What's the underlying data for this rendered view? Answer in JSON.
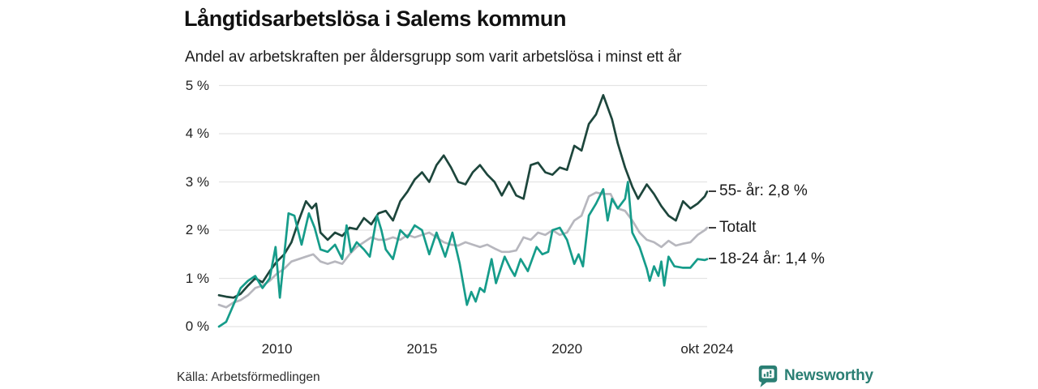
{
  "header": {
    "title": "Långtidsarbetslösa i Salems kommun",
    "subtitle": "Andel av arbetskraften per åldersgrupp som varit arbetslösa i minst ett år"
  },
  "footer": {
    "source": "Källa: Arbetsförmedlingen",
    "brand": "Newsworthy"
  },
  "colors": {
    "series_55": "#1d463c",
    "series_total": "#b7b7be",
    "series_1824": "#169c8a",
    "grid": "#e4e4e4",
    "text": "#1a1a1a",
    "brand": "#2b7f74"
  },
  "chart_data": {
    "type": "line",
    "title": "Långtidsarbetslösa i Salems kommun",
    "subtitle": "Andel av arbetskraften per åldersgrupp som varit arbetslösa i minst ett år",
    "xlabel": "",
    "ylabel": "",
    "unit": "%",
    "grid": "horizontal",
    "legend_position": "end-of-line-right",
    "x_axis": {
      "range": [
        2008,
        2024.83
      ],
      "ticks": [
        {
          "v": 2010,
          "label": "2010"
        },
        {
          "v": 2015,
          "label": "2015"
        },
        {
          "v": 2020,
          "label": "2020"
        },
        {
          "v": 2024.83,
          "label": "okt 2024"
        }
      ]
    },
    "y_axis": {
      "range": [
        0,
        5
      ],
      "ticks": [
        {
          "v": 0,
          "label": "0 %"
        },
        {
          "v": 1,
          "label": "1 %"
        },
        {
          "v": 2,
          "label": "2 %"
        },
        {
          "v": 3,
          "label": "3 %"
        },
        {
          "v": 4,
          "label": "4 %"
        },
        {
          "v": 5,
          "label": "5 %"
        }
      ]
    },
    "series": [
      {
        "key": "totalt",
        "name": "Totalt",
        "end_label": "Totalt",
        "end_value": null,
        "color": "#b7b7be",
        "points": [
          [
            2008,
            0.45
          ],
          [
            2008.25,
            0.4
          ],
          [
            2008.5,
            0.5
          ],
          [
            2008.75,
            0.55
          ],
          [
            2009,
            0.65
          ],
          [
            2009.25,
            0.8
          ],
          [
            2009.5,
            0.85
          ],
          [
            2009.75,
            0.95
          ],
          [
            2010,
            1.1
          ],
          [
            2010.25,
            1.2
          ],
          [
            2010.5,
            1.35
          ],
          [
            2010.75,
            1.4
          ],
          [
            2011,
            1.45
          ],
          [
            2011.25,
            1.5
          ],
          [
            2011.5,
            1.35
          ],
          [
            2011.75,
            1.3
          ],
          [
            2012,
            1.35
          ],
          [
            2012.25,
            1.3
          ],
          [
            2012.5,
            1.5
          ],
          [
            2012.75,
            1.65
          ],
          [
            2013,
            1.75
          ],
          [
            2013.25,
            1.85
          ],
          [
            2013.5,
            1.8
          ],
          [
            2013.75,
            1.8
          ],
          [
            2014,
            1.85
          ],
          [
            2014.25,
            1.8
          ],
          [
            2014.5,
            1.9
          ],
          [
            2014.75,
            1.85
          ],
          [
            2015,
            1.9
          ],
          [
            2015.25,
            1.95
          ],
          [
            2015.5,
            1.85
          ],
          [
            2015.75,
            1.75
          ],
          [
            2016,
            1.7
          ],
          [
            2016.25,
            1.68
          ],
          [
            2016.5,
            1.75
          ],
          [
            2016.75,
            1.7
          ],
          [
            2017,
            1.65
          ],
          [
            2017.25,
            1.7
          ],
          [
            2017.5,
            1.62
          ],
          [
            2017.75,
            1.55
          ],
          [
            2018,
            1.55
          ],
          [
            2018.25,
            1.58
          ],
          [
            2018.5,
            1.85
          ],
          [
            2018.75,
            1.8
          ],
          [
            2019,
            1.95
          ],
          [
            2019.25,
            1.9
          ],
          [
            2019.5,
            2
          ],
          [
            2019.75,
            1.9
          ],
          [
            2020,
            1.95
          ],
          [
            2020.25,
            2.2
          ],
          [
            2020.5,
            2.3
          ],
          [
            2020.75,
            2.7
          ],
          [
            2021,
            2.78
          ],
          [
            2021.25,
            2.75
          ],
          [
            2021.5,
            2.75
          ],
          [
            2021.75,
            2.45
          ],
          [
            2022,
            2.4
          ],
          [
            2022.25,
            2.2
          ],
          [
            2022.5,
            1.95
          ],
          [
            2022.75,
            1.8
          ],
          [
            2023,
            1.75
          ],
          [
            2023.25,
            1.65
          ],
          [
            2023.5,
            1.78
          ],
          [
            2023.75,
            1.68
          ],
          [
            2024,
            1.72
          ],
          [
            2024.25,
            1.75
          ],
          [
            2024.5,
            1.9
          ],
          [
            2024.75,
            2
          ],
          [
            2024.83,
            2.05
          ]
        ]
      },
      {
        "key": "55-ar",
        "name": "55- år",
        "end_label": "55- år: 2,8 %",
        "end_value": "2,8 %",
        "color": "#1d463c",
        "points": [
          [
            2008,
            0.65
          ],
          [
            2008.25,
            0.62
          ],
          [
            2008.5,
            0.6
          ],
          [
            2008.75,
            0.68
          ],
          [
            2009,
            0.85
          ],
          [
            2009.25,
            1
          ],
          [
            2009.5,
            0.92
          ],
          [
            2009.75,
            1.15
          ],
          [
            2010,
            1.35
          ],
          [
            2010.25,
            1.5
          ],
          [
            2010.5,
            1.75
          ],
          [
            2010.75,
            2.2
          ],
          [
            2011,
            2.6
          ],
          [
            2011.2,
            2.45
          ],
          [
            2011.35,
            2.55
          ],
          [
            2011.5,
            1.95
          ],
          [
            2011.75,
            1.8
          ],
          [
            2012,
            1.95
          ],
          [
            2012.25,
            1.88
          ],
          [
            2012.5,
            2.05
          ],
          [
            2012.75,
            2.02
          ],
          [
            2013,
            2.25
          ],
          [
            2013.25,
            2.12
          ],
          [
            2013.5,
            2.35
          ],
          [
            2013.75,
            2.4
          ],
          [
            2014,
            2.2
          ],
          [
            2014.25,
            2.6
          ],
          [
            2014.5,
            2.8
          ],
          [
            2014.75,
            3.05
          ],
          [
            2015,
            3.2
          ],
          [
            2015.25,
            3
          ],
          [
            2015.5,
            3.35
          ],
          [
            2015.75,
            3.55
          ],
          [
            2016,
            3.3
          ],
          [
            2016.25,
            3
          ],
          [
            2016.5,
            2.95
          ],
          [
            2016.75,
            3.2
          ],
          [
            2017,
            3.35
          ],
          [
            2017.25,
            3.15
          ],
          [
            2017.5,
            3
          ],
          [
            2017.75,
            2.72
          ],
          [
            2018,
            3
          ],
          [
            2018.25,
            2.72
          ],
          [
            2018.5,
            2.65
          ],
          [
            2018.75,
            3.35
          ],
          [
            2019,
            3.4
          ],
          [
            2019.25,
            3.2
          ],
          [
            2019.5,
            3.15
          ],
          [
            2019.75,
            3.3
          ],
          [
            2020,
            3.25
          ],
          [
            2020.25,
            3.75
          ],
          [
            2020.5,
            3.65
          ],
          [
            2020.75,
            4.2
          ],
          [
            2021,
            4.4
          ],
          [
            2021.25,
            4.8
          ],
          [
            2021.4,
            4.55
          ],
          [
            2021.55,
            4.3
          ],
          [
            2021.75,
            3.8
          ],
          [
            2022,
            3.3
          ],
          [
            2022.25,
            2.9
          ],
          [
            2022.45,
            2.65
          ],
          [
            2022.75,
            2.95
          ],
          [
            2023,
            2.75
          ],
          [
            2023.25,
            2.5
          ],
          [
            2023.5,
            2.3
          ],
          [
            2023.75,
            2.2
          ],
          [
            2024,
            2.6
          ],
          [
            2024.25,
            2.45
          ],
          [
            2024.5,
            2.55
          ],
          [
            2024.75,
            2.7
          ],
          [
            2024.83,
            2.8
          ]
        ]
      },
      {
        "key": "18-24-ar",
        "name": "18-24 år",
        "end_label": "18-24 år: 1,4 %",
        "end_value": "1,4 %",
        "color": "#169c8a",
        "points": [
          [
            2008,
            0
          ],
          [
            2008.25,
            0.1
          ],
          [
            2008.5,
            0.45
          ],
          [
            2008.75,
            0.8
          ],
          [
            2009,
            0.95
          ],
          [
            2009.25,
            1.05
          ],
          [
            2009.5,
            0.8
          ],
          [
            2009.75,
            1
          ],
          [
            2009.95,
            1.65
          ],
          [
            2010.1,
            0.6
          ],
          [
            2010.4,
            2.35
          ],
          [
            2010.6,
            2.3
          ],
          [
            2010.85,
            1.7
          ],
          [
            2011.1,
            2.35
          ],
          [
            2011.3,
            2.05
          ],
          [
            2011.5,
            1.6
          ],
          [
            2011.75,
            1.55
          ],
          [
            2012,
            1.7
          ],
          [
            2012.25,
            1.4
          ],
          [
            2012.4,
            2.1
          ],
          [
            2012.55,
            1.55
          ],
          [
            2012.75,
            1.75
          ],
          [
            2013,
            1.6
          ],
          [
            2013.2,
            1.45
          ],
          [
            2013.45,
            2.3
          ],
          [
            2013.6,
            2
          ],
          [
            2013.75,
            1.6
          ],
          [
            2014,
            1.4
          ],
          [
            2014.25,
            2
          ],
          [
            2014.5,
            1.85
          ],
          [
            2014.75,
            2.1
          ],
          [
            2015,
            2
          ],
          [
            2015.25,
            1.5
          ],
          [
            2015.5,
            1.95
          ],
          [
            2015.8,
            1.45
          ],
          [
            2016.05,
            1.95
          ],
          [
            2016.3,
            1.3
          ],
          [
            2016.55,
            0.45
          ],
          [
            2016.7,
            0.72
          ],
          [
            2016.85,
            0.52
          ],
          [
            2017,
            0.8
          ],
          [
            2017.15,
            0.72
          ],
          [
            2017.4,
            1.4
          ],
          [
            2017.55,
            0.9
          ],
          [
            2017.85,
            1.45
          ],
          [
            2018.05,
            1.2
          ],
          [
            2018.2,
            1.05
          ],
          [
            2018.4,
            1.4
          ],
          [
            2018.65,
            1.15
          ],
          [
            2018.95,
            1.65
          ],
          [
            2019.15,
            1.5
          ],
          [
            2019.35,
            1.55
          ],
          [
            2019.5,
            2
          ],
          [
            2019.75,
            2.05
          ],
          [
            2020,
            1.8
          ],
          [
            2020.25,
            1.3
          ],
          [
            2020.4,
            1.5
          ],
          [
            2020.55,
            1.25
          ],
          [
            2020.75,
            2.3
          ],
          [
            2021,
            2.55
          ],
          [
            2021.25,
            2.85
          ],
          [
            2021.4,
            2.2
          ],
          [
            2021.55,
            2.65
          ],
          [
            2021.75,
            2.45
          ],
          [
            2022,
            2.65
          ],
          [
            2022.1,
            3
          ],
          [
            2022.25,
            1.95
          ],
          [
            2022.5,
            1.65
          ],
          [
            2022.75,
            1.2
          ],
          [
            2022.85,
            0.95
          ],
          [
            2023,
            1.25
          ],
          [
            2023.15,
            1.05
          ],
          [
            2023.25,
            1.35
          ],
          [
            2023.35,
            0.85
          ],
          [
            2023.5,
            1.45
          ],
          [
            2023.7,
            1.25
          ],
          [
            2024,
            1.22
          ],
          [
            2024.25,
            1.22
          ],
          [
            2024.5,
            1.4
          ],
          [
            2024.75,
            1.38
          ],
          [
            2024.83,
            1.4
          ]
        ]
      }
    ]
  }
}
